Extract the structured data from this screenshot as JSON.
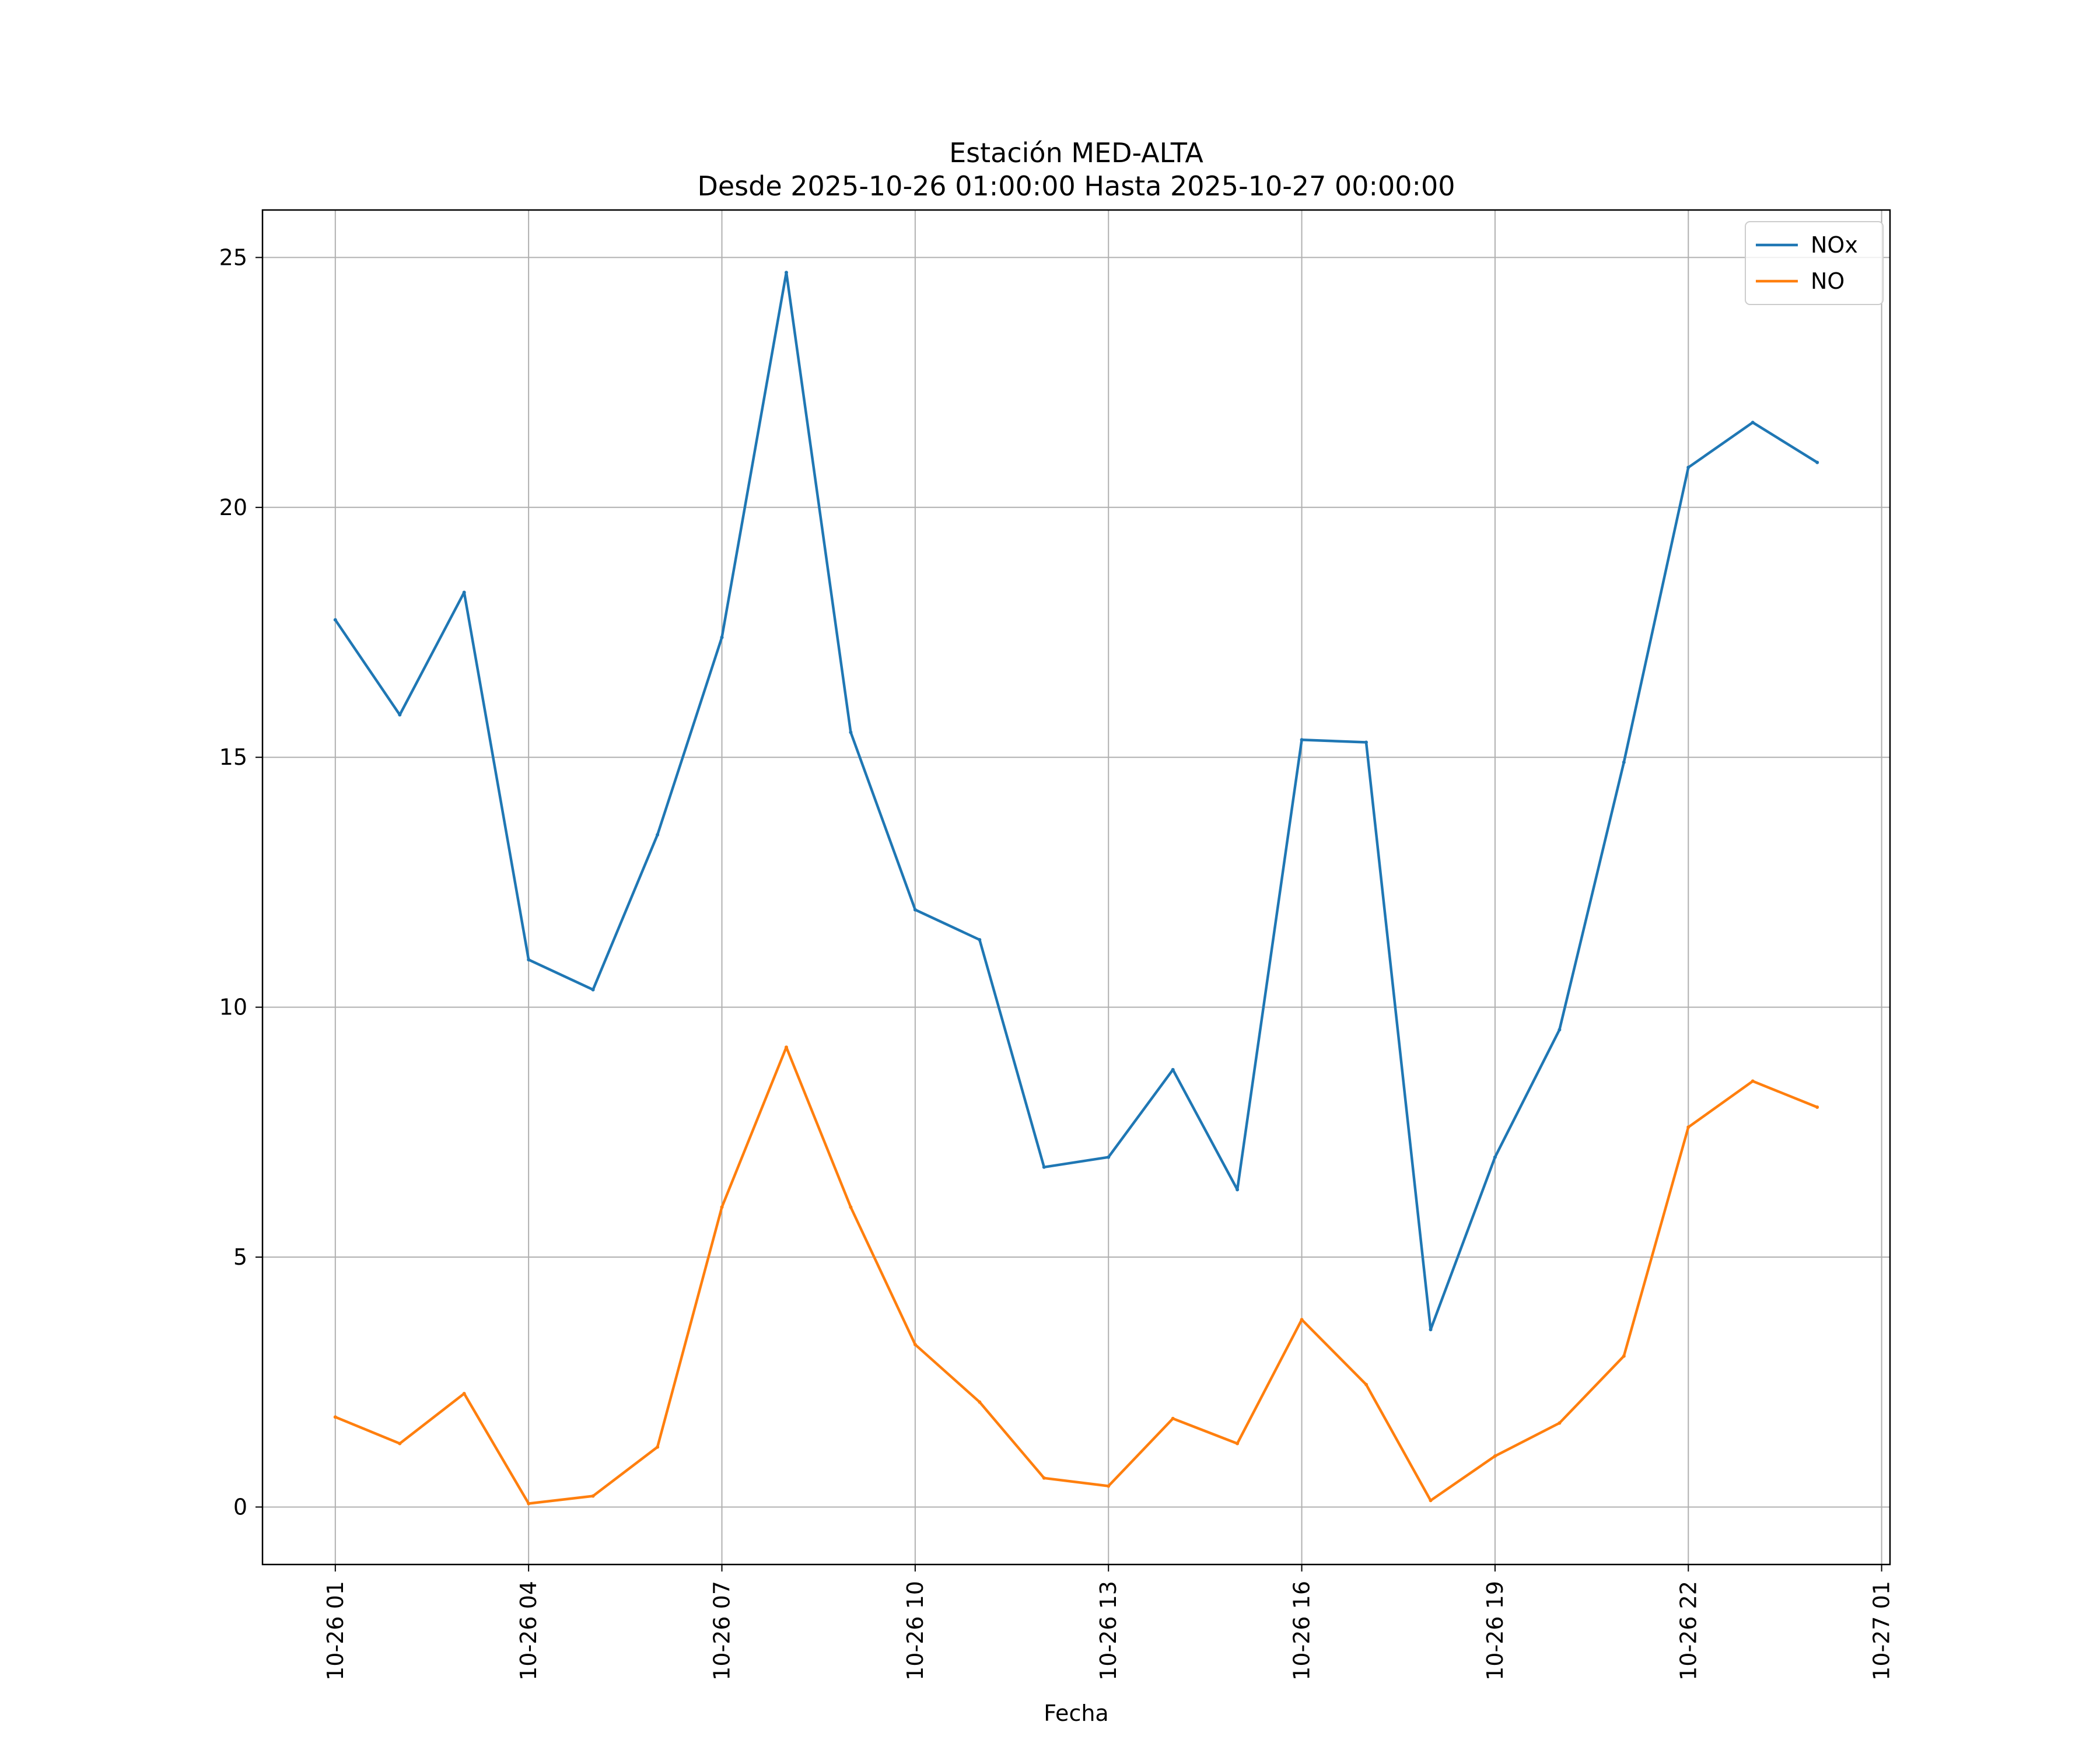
{
  "chart_data": {
    "type": "line",
    "title": "Estación MED-ALTA",
    "subtitle": "Desde 2025-10-26 01:00:00 Hasta 2025-10-27 00:00:00",
    "xlabel": "Fecha",
    "ylabel": "",
    "x": [
      "2025-10-26 01:00",
      "2025-10-26 02:00",
      "2025-10-26 03:00",
      "2025-10-26 04:00",
      "2025-10-26 05:00",
      "2025-10-26 06:00",
      "2025-10-26 07:00",
      "2025-10-26 08:00",
      "2025-10-26 09:00",
      "2025-10-26 10:00",
      "2025-10-26 11:00",
      "2025-10-26 12:00",
      "2025-10-26 13:00",
      "2025-10-26 14:00",
      "2025-10-26 15:00",
      "2025-10-26 16:00",
      "2025-10-26 17:00",
      "2025-10-26 18:00",
      "2025-10-26 19:00",
      "2025-10-26 20:00",
      "2025-10-26 21:00",
      "2025-10-26 22:00",
      "2025-10-26 23:00",
      "2025-10-27 00:00"
    ],
    "x_hours": [
      1,
      2,
      3,
      4,
      5,
      6,
      7,
      8,
      9,
      10,
      11,
      12,
      13,
      14,
      15,
      16,
      17,
      18,
      19,
      20,
      21,
      22,
      23,
      24
    ],
    "xlim_hours": [
      -0.13,
      25.13
    ],
    "xticks_hours": [
      1,
      4,
      7,
      10,
      13,
      16,
      19,
      22,
      25
    ],
    "xtick_labels": [
      "10-26 01",
      "10-26 04",
      "10-26 07",
      "10-26 10",
      "10-26 13",
      "10-26 16",
      "10-26 19",
      "10-26 22",
      "10-27 01"
    ],
    "ylim": [
      -1.15,
      25.95
    ],
    "yticks": [
      0,
      5,
      10,
      15,
      20,
      25
    ],
    "ytick_labels": [
      "0",
      "5",
      "10",
      "15",
      "20",
      "25"
    ],
    "grid": true,
    "legend_position": "top-right",
    "series": [
      {
        "name": "NOx",
        "color": "#1f77b4",
        "values": [
          17.75,
          15.85,
          18.3,
          10.95,
          10.35,
          13.45,
          17.4,
          24.7,
          15.5,
          11.95,
          11.35,
          6.8,
          7.0,
          8.75,
          6.35,
          15.35,
          15.3,
          3.55,
          7.0,
          9.55,
          14.9,
          20.8,
          21.7,
          20.9
        ]
      },
      {
        "name": "NO",
        "color": "#ff7f0e",
        "values": [
          1.8,
          1.27,
          2.27,
          0.07,
          0.22,
          1.2,
          6.0,
          9.2,
          6.0,
          3.25,
          2.1,
          0.58,
          0.42,
          1.77,
          1.27,
          3.75,
          2.45,
          0.13,
          1.02,
          1.68,
          3.02,
          7.6,
          8.52,
          8.0
        ]
      }
    ],
    "grid_color": "#b0b0b0",
    "axis_color": "#000000"
  }
}
